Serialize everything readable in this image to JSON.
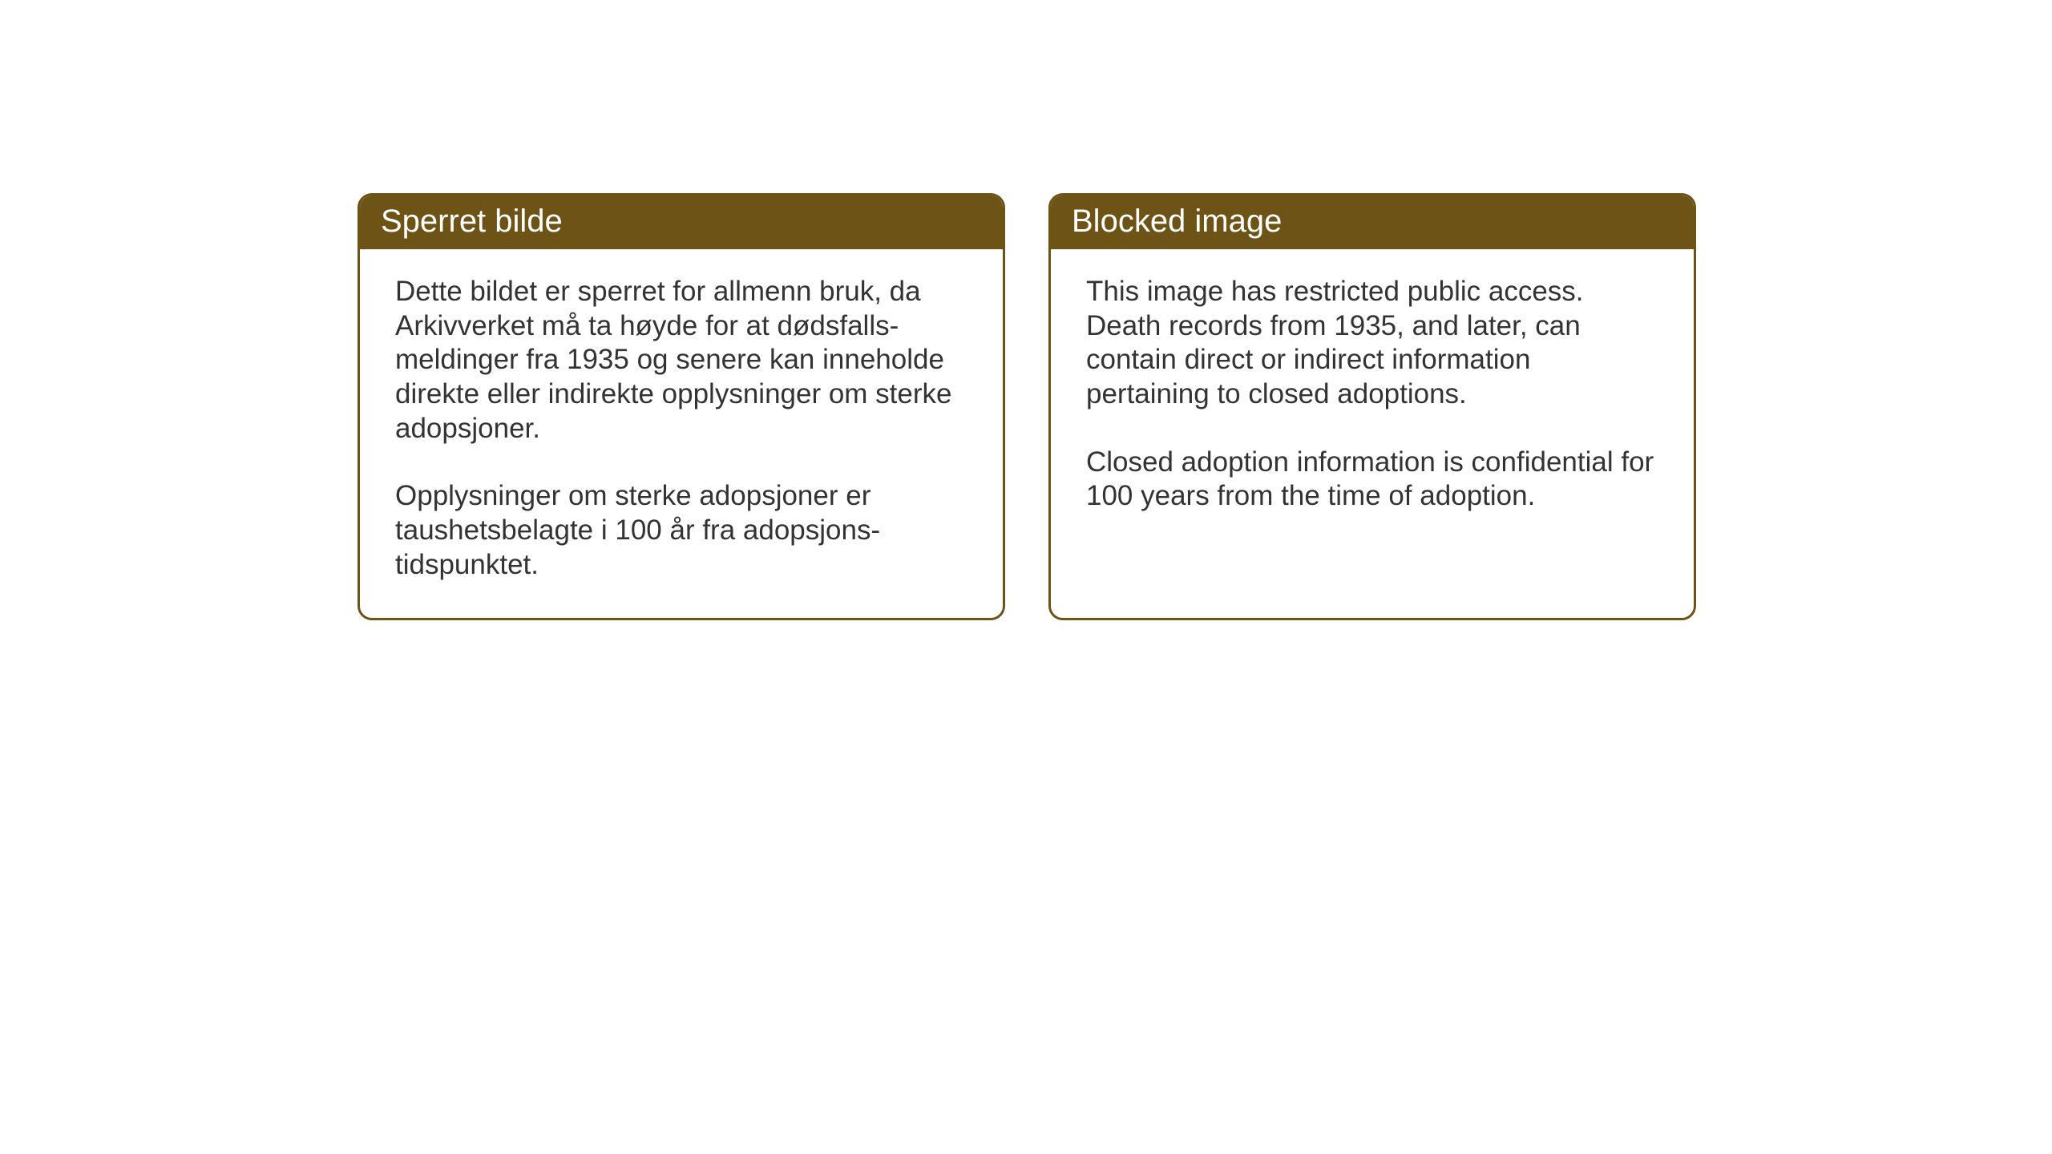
{
  "layout": {
    "background_color": "#ffffff",
    "card_border_color": "#6e5316",
    "card_header_bg": "#6e5316",
    "card_header_text_color": "#ffffff",
    "card_body_text_color": "#333333",
    "card_border_radius": 18,
    "card_border_width": 3,
    "header_fontsize": 40,
    "body_fontsize": 35,
    "gap_between_cards": 54
  },
  "cards": {
    "left": {
      "title": "Sperret bilde",
      "paragraph1": "Dette bildet er sperret for allmenn bruk, da Arkivverket må ta høyde for at dødsfalls-meldinger fra 1935 og senere kan inneholde direkte eller indirekte opplysninger om sterke adopsjoner.",
      "paragraph2": "Opplysninger om sterke adopsjoner er taushetsbelagte i 100 år fra adopsjons-tidspunktet."
    },
    "right": {
      "title": "Blocked image",
      "paragraph1": "This image has restricted public access. Death records from 1935, and later, can contain direct or indirect information pertaining to closed adoptions.",
      "paragraph2": "Closed adoption information is confidential for 100 years from the time of adoption."
    }
  }
}
